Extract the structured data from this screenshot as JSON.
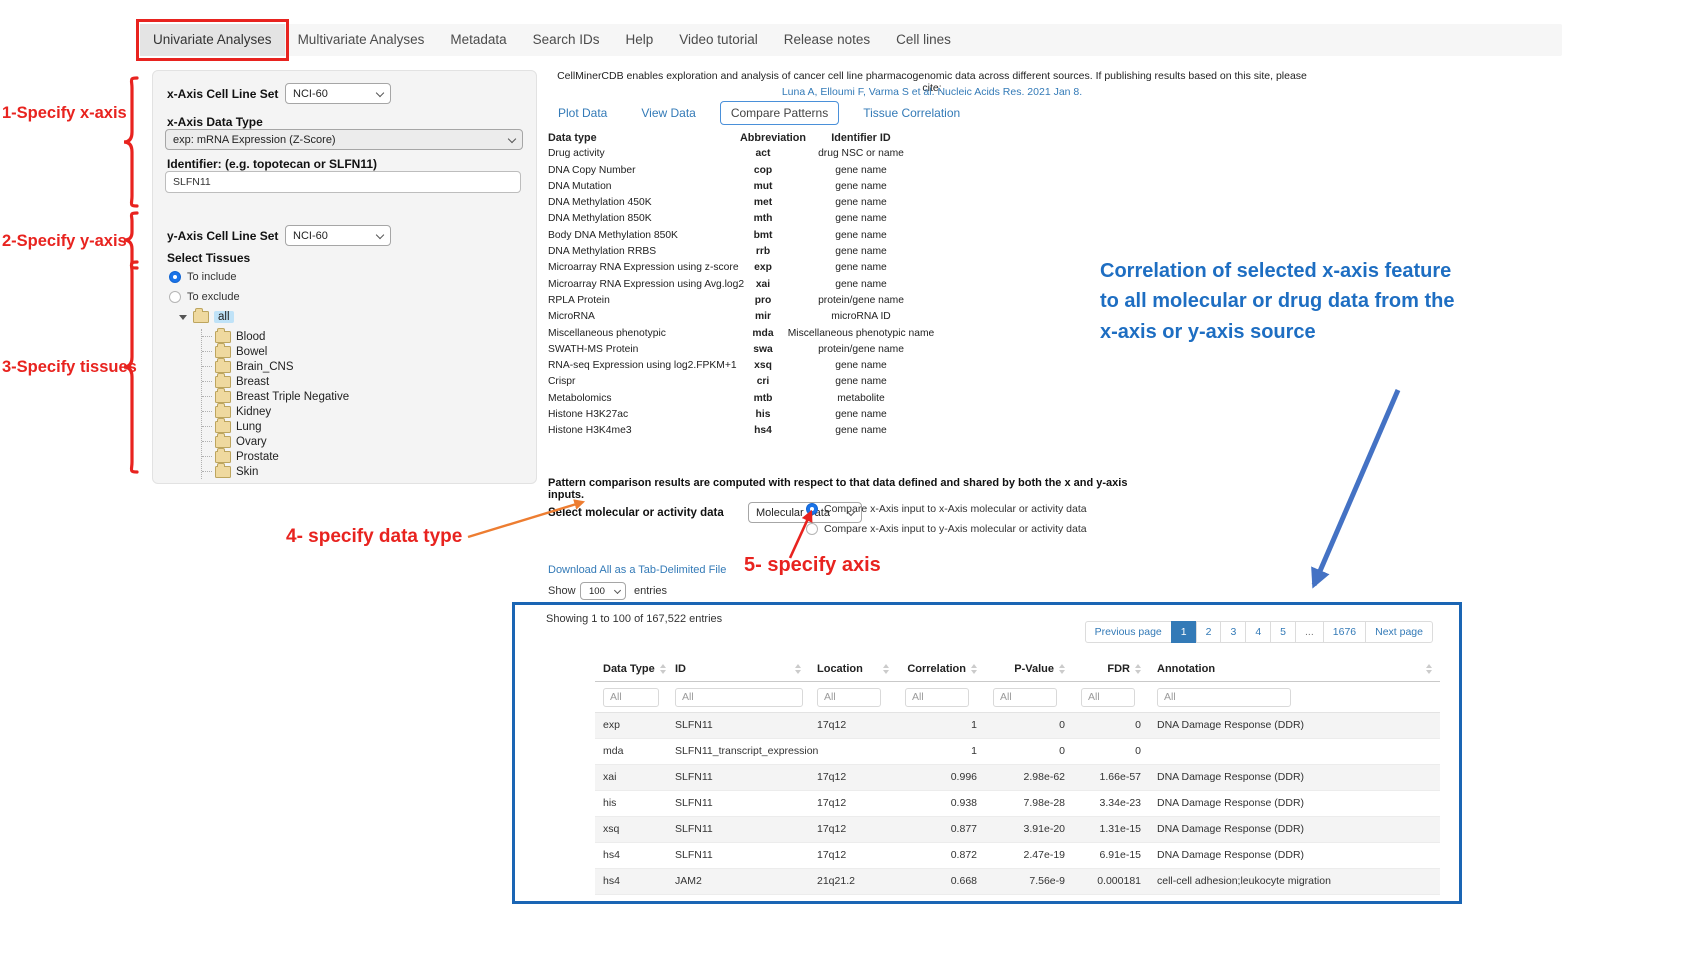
{
  "nav": {
    "active": "Univariate Analyses",
    "items": [
      "Univariate Analyses",
      "Multivariate Analyses",
      "Metadata",
      "Search IDs",
      "Help",
      "Video tutorial",
      "Release notes",
      "Cell lines"
    ]
  },
  "annotations": {
    "step1": "1-Specify x-axis",
    "step2": "2-Specify y-axis",
    "step3": "3-Specify tissues",
    "step4": "4- specify data type",
    "step5": "5- specify axis",
    "correlation_note": "Correlation of selected x-axis feature to all molecular or drug data from the x-axis or y-axis source",
    "red_color": "#e8231f",
    "orange_color": "#ed7d31",
    "blue_text_color": "#1e6ec2",
    "blue_arrow_color": "#4472c4",
    "box_border_color": "#1a65b4"
  },
  "form": {
    "x_axis_cell_line_set_label": "x-Axis Cell Line Set",
    "x_axis_cell_line_set_value": "NCI-60",
    "x_axis_data_type_label": "x-Axis Data Type",
    "x_axis_data_type_value": "exp: mRNA Expression (Z-Score)",
    "identifier_label": "Identifier: (e.g. topotecan or SLFN11)",
    "identifier_value": "SLFN11",
    "y_axis_cell_line_set_label": "y-Axis Cell Line Set",
    "y_axis_cell_line_set_value": "NCI-60",
    "select_tissues_label": "Select Tissues",
    "include_label": "To include",
    "exclude_label": "To exclude",
    "tissues_mode": "include",
    "tissue_tree": {
      "root": "all",
      "children": [
        "Blood",
        "Bowel",
        "Brain_CNS",
        "Breast",
        "Breast Triple Negative",
        "Kidney",
        "Lung",
        "Ovary",
        "Prostate",
        "Skin"
      ]
    }
  },
  "citation": {
    "intro": "CellMinerCDB enables exploration and analysis of cancer cell line pharmacogenomic data across different sources. If publishing results based on this site, please cite:",
    "reference": "Luna A, Elloumi F, Varma S et al. Nucleic Acids Res. 2021 Jan 8."
  },
  "tabs": {
    "active": "Compare Patterns",
    "items": [
      "Plot Data",
      "View Data",
      "Compare Patterns",
      "Tissue Correlation"
    ]
  },
  "datatype_table": {
    "headers": [
      "Data type",
      "Abbreviation",
      "Identifier ID"
    ],
    "rows": [
      [
        "Drug activity",
        "act",
        "drug NSC or name"
      ],
      [
        "DNA Copy Number",
        "cop",
        "gene name"
      ],
      [
        "DNA Mutation",
        "mut",
        "gene name"
      ],
      [
        "DNA Methylation 450K",
        "met",
        "gene name"
      ],
      [
        "DNA Methylation 850K",
        "mth",
        "gene name"
      ],
      [
        "Body DNA Methylation 850K",
        "bmt",
        "gene name"
      ],
      [
        "DNA Methylation RRBS",
        "rrb",
        "gene name"
      ],
      [
        "Microarray RNA Expression using z-score",
        "exp",
        "gene name"
      ],
      [
        "Microarray RNA Expression using Avg.log2",
        "xai",
        "gene name"
      ],
      [
        "RPLA Protein",
        "pro",
        "protein/gene name"
      ],
      [
        "MicroRNA",
        "mir",
        "microRNA ID"
      ],
      [
        "Miscellaneous phenotypic",
        "mda",
        "Miscellaneous phenotypic name"
      ],
      [
        "SWATH-MS Protein",
        "swa",
        "protein/gene name"
      ],
      [
        "RNA-seq Expression using log2.FPKM+1",
        "xsq",
        "gene name"
      ],
      [
        "Crispr",
        "cri",
        "gene name"
      ],
      [
        "Metabolomics",
        "mtb",
        "metabolite"
      ],
      [
        "Histone H3K27ac",
        "his",
        "gene name"
      ],
      [
        "Histone H3K4me3",
        "hs4",
        "gene name"
      ]
    ]
  },
  "pattern_note": "Pattern comparison results are computed with respect to that data defined and shared by both the x and y-axis inputs.",
  "compare": {
    "select_label": "Select molecular or activity data",
    "select_value": "Molecular Data",
    "options": [
      "Compare x-Axis input to x-Axis molecular or activity data",
      "Compare x-Axis input to y-Axis molecular or activity data"
    ],
    "selected": 0
  },
  "results": {
    "download_label": "Download All as a Tab-Delimited File",
    "show_label": "Show",
    "show_value": "100",
    "entries_label": "entries",
    "showing_text": "Showing 1 to 100 of 167,522 entries",
    "pagination": {
      "prev": "Previous page",
      "pages": [
        "1",
        "2",
        "3",
        "4",
        "5",
        "...",
        "1676"
      ],
      "active": "1",
      "next": "Next page"
    },
    "table": {
      "headers": [
        "Data Type",
        "ID",
        "Location",
        "Correlation",
        "P-Value",
        "FDR",
        "Annotation"
      ],
      "filter_placeholder": "All",
      "rows": [
        [
          "exp",
          "SLFN11",
          "17q12",
          "1",
          "0",
          "0",
          "DNA Damage Response (DDR)"
        ],
        [
          "mda",
          "SLFN11_transcript_expression",
          "",
          "1",
          "0",
          "0",
          ""
        ],
        [
          "xai",
          "SLFN11",
          "17q12",
          "0.996",
          "2.98e-62",
          "1.66e-57",
          "DNA Damage Response (DDR)"
        ],
        [
          "his",
          "SLFN11",
          "17q12",
          "0.938",
          "7.98e-28",
          "3.34e-23",
          "DNA Damage Response (DDR)"
        ],
        [
          "xsq",
          "SLFN11",
          "17q12",
          "0.877",
          "3.91e-20",
          "1.31e-15",
          "DNA Damage Response (DDR)"
        ],
        [
          "hs4",
          "SLFN11",
          "17q12",
          "0.872",
          "2.47e-19",
          "6.91e-15",
          "DNA Damage Response (DDR)"
        ],
        [
          "hs4",
          "JAM2",
          "21q21.2",
          "0.668",
          "7.56e-9",
          "0.000181",
          "cell-cell adhesion;leukocyte migration"
        ]
      ]
    }
  }
}
